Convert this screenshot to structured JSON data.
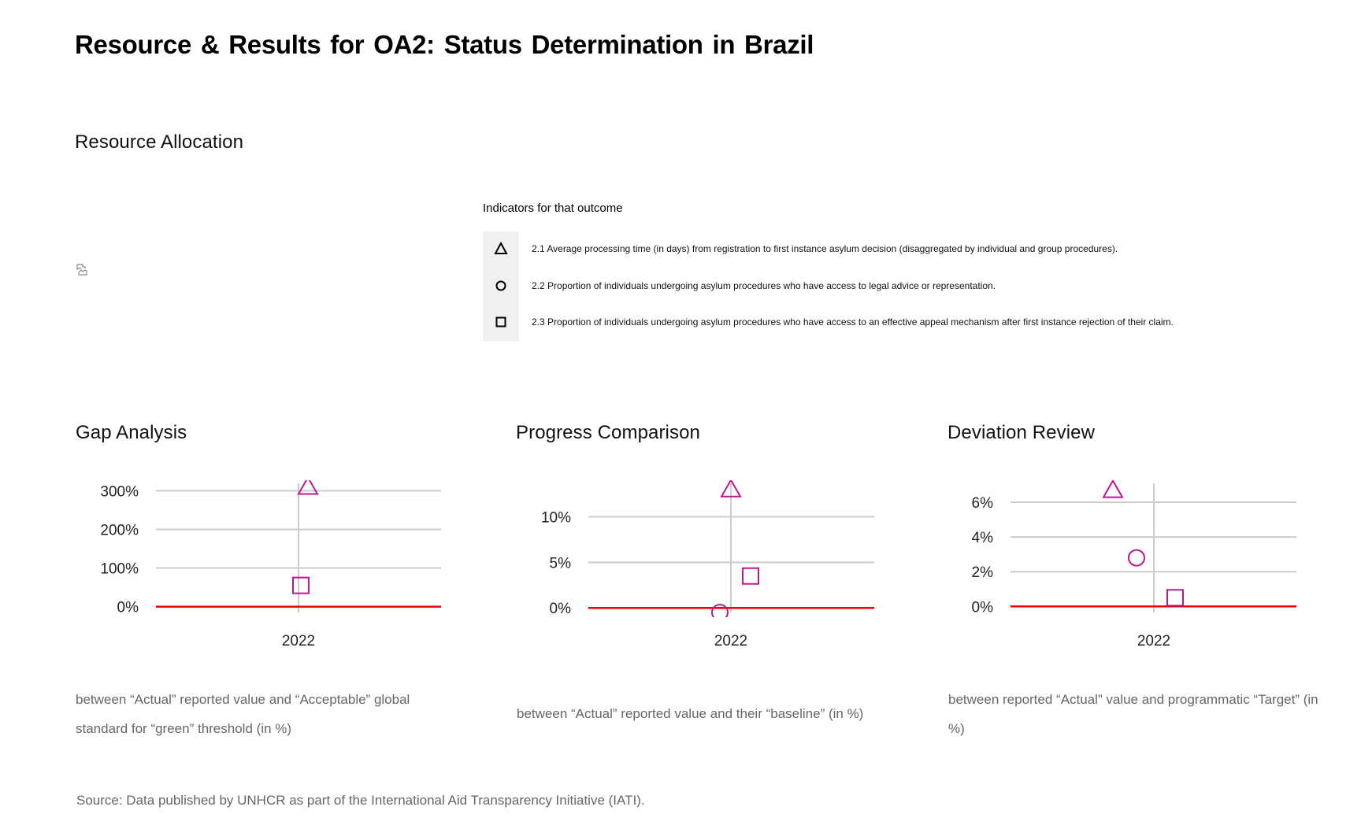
{
  "page": {
    "title": "Resource & Results for OA2: Status Determination in Brazil",
    "resource_allocation_title": "Resource Allocation",
    "source": "Source: Data published by UNHCR as part of the International  Aid Transparency Initiative (IATI)."
  },
  "indicators": {
    "heading": "Indicators for that outcome",
    "items": [
      {
        "symbol": "triangle",
        "text": "2.1 Average processing time (in days) from registration to first instance asylum decision (disaggregated by individual and group procedures)."
      },
      {
        "symbol": "circle",
        "text": "2.2 Proportion of individuals undergoing asylum procedures who have access to legal advice or representation."
      },
      {
        "symbol": "square",
        "text": "2.3 Proportion of individuals undergoing asylum procedures who have access to an effective appeal mechanism after first instance rejection of their claim."
      }
    ]
  },
  "colors": {
    "marker": "#c2168e",
    "zero_line": "#ee0000",
    "grid": "#cccccc"
  },
  "chart_data": [
    {
      "type": "scatter",
      "title": "Gap Analysis",
      "caption": "between “Actual” reported value and “Acceptable” global standard for “green” threshold (in %)",
      "categories": [
        "2022"
      ],
      "ylim": [
        -15,
        315
      ],
      "yticks": [
        0,
        100,
        200,
        300
      ],
      "ytick_labels": [
        "0%",
        "100%",
        "200%",
        "300%"
      ],
      "grid": true,
      "series": [
        {
          "symbol": "triangle",
          "values": [
            310
          ]
        },
        {
          "symbol": "square",
          "values": [
            55
          ]
        }
      ]
    },
    {
      "type": "scatter",
      "title": "Progress Comparison",
      "caption": "between “Actual” reported value and their “baseline” (in %)",
      "categories": [
        "2022"
      ],
      "ylim": [
        -0.5,
        13.5
      ],
      "yticks": [
        0,
        5,
        10
      ],
      "ytick_labels": [
        "0%",
        "5%",
        "10%"
      ],
      "grid": true,
      "series": [
        {
          "symbol": "triangle",
          "values": [
            13
          ]
        },
        {
          "symbol": "circle",
          "values": [
            -0.5
          ]
        },
        {
          "symbol": "square",
          "values": [
            3.5
          ]
        }
      ]
    },
    {
      "type": "scatter",
      "title": "Deviation Review",
      "caption": "between reported “Actual” value and programmatic “Target” (in %)",
      "categories": [
        "2022"
      ],
      "ylim": [
        -0.35,
        7
      ],
      "yticks": [
        0,
        2,
        4,
        6
      ],
      "ytick_labels": [
        "0%",
        "2%",
        "4%",
        "6%"
      ],
      "grid": true,
      "series": [
        {
          "symbol": "triangle",
          "values": [
            6.7
          ]
        },
        {
          "symbol": "circle",
          "values": [
            2.8
          ]
        },
        {
          "symbol": "square",
          "values": [
            0.5
          ]
        }
      ]
    }
  ]
}
